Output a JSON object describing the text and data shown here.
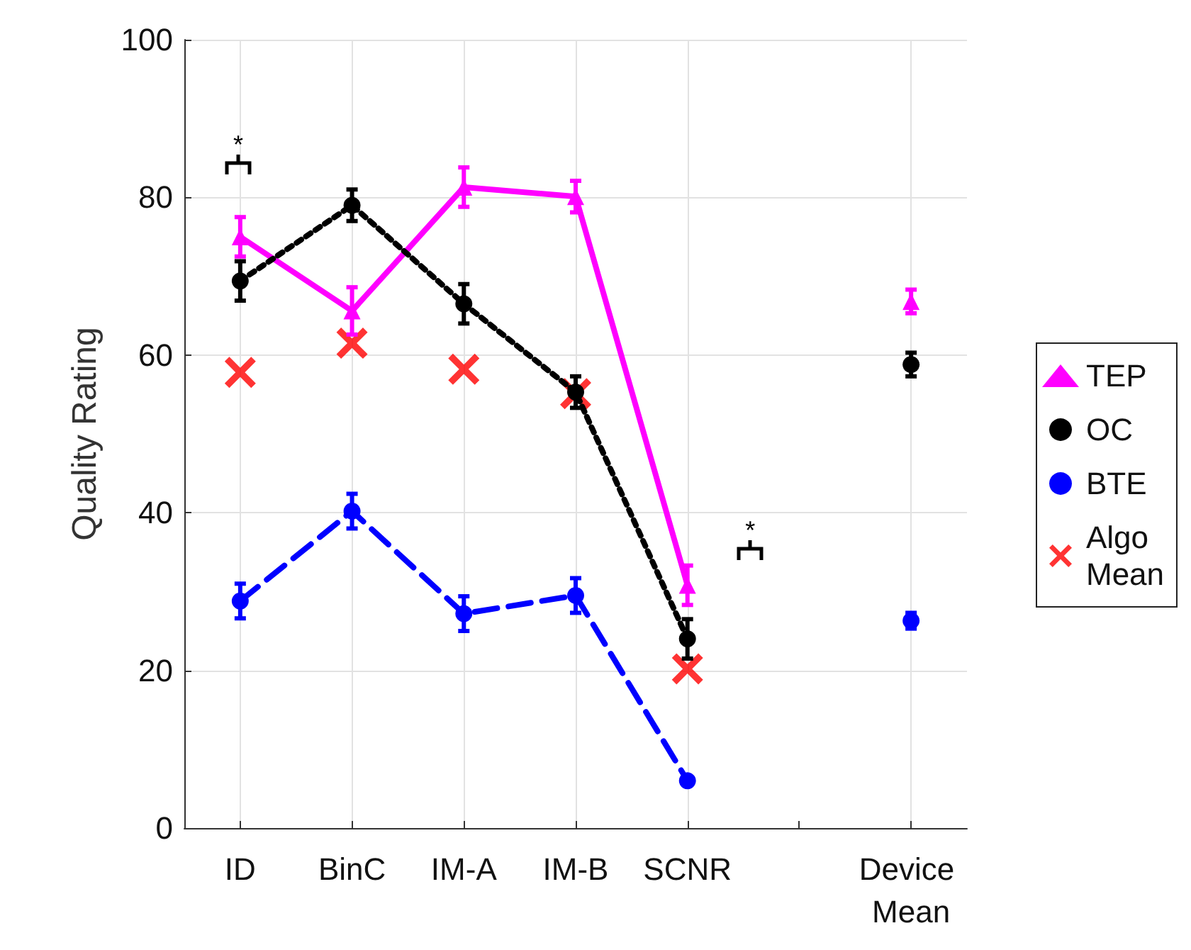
{
  "chart_data": {
    "type": "line",
    "ylabel": "Quality Rating",
    "ylim": [
      0,
      100
    ],
    "categories": [
      "ID",
      "BinC",
      "IM-A",
      "IM-B",
      "SCNR",
      null,
      "Device Mean"
    ],
    "yticks": [
      0,
      20,
      40,
      60,
      80,
      100
    ],
    "grid": true,
    "legend": "right",
    "series": [
      {
        "name": "TEP",
        "color": "#ff00ff",
        "marker": "triangle",
        "line_style": "solid",
        "values": [
          75,
          65.6,
          81.3,
          80.1,
          30.8,
          null,
          66.8
        ],
        "errors": [
          2.5,
          3,
          2.5,
          2,
          2.5,
          null,
          1.5
        ]
      },
      {
        "name": "OC",
        "color": "#000000",
        "marker": "circle",
        "line_style": "dotted",
        "values": [
          69.4,
          79,
          66.5,
          55.3,
          24,
          null,
          58.8
        ],
        "errors": [
          2.5,
          2,
          2.5,
          2,
          2.5,
          null,
          1.5
        ]
      },
      {
        "name": "BTE",
        "color": "#0000ff",
        "marker": "circle",
        "line_style": "dashed",
        "values": [
          28.8,
          40.2,
          27.2,
          29.5,
          6,
          null,
          26.3
        ],
        "errors": [
          2.2,
          2.2,
          2.2,
          2.2,
          null,
          null,
          1
        ]
      },
      {
        "name": "Algo Mean",
        "type": "scatter",
        "color": "#ff0000",
        "marker": "cross",
        "values": [
          57.8,
          61.5,
          58.2,
          55.1,
          20.2,
          null,
          null
        ]
      }
    ],
    "annotations": [
      "*",
      "*"
    ]
  }
}
